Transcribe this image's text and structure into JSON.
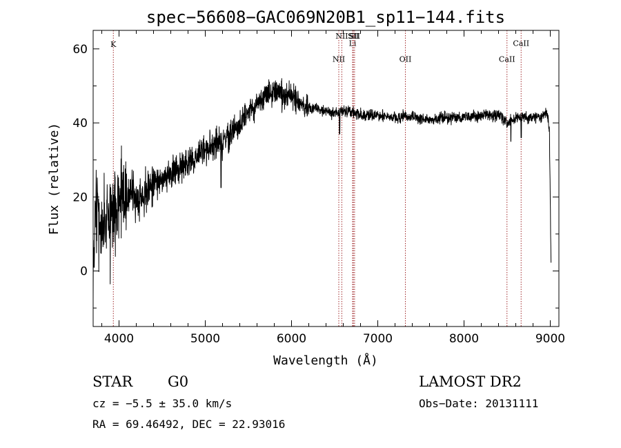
{
  "chart_data": {
    "type": "line",
    "title": "spec−56608−GAC069N20B1_sp11−144.fits",
    "xlabel": "Wavelength (Å)",
    "ylabel": "Flux (relative)",
    "xlim": [
      3700,
      9100
    ],
    "ylim": [
      -15,
      65
    ],
    "xticks": [
      {
        "value": 4000,
        "label": "4000"
      },
      {
        "value": 5000,
        "label": "5000"
      },
      {
        "value": 6000,
        "label": "6000"
      },
      {
        "value": 7000,
        "label": "7000"
      },
      {
        "value": 8000,
        "label": "8000"
      },
      {
        "value": 9000,
        "label": "9000"
      }
    ],
    "yticks": [
      {
        "value": 0,
        "label": "0"
      },
      {
        "value": 20,
        "label": "20"
      },
      {
        "value": 40,
        "label": "40"
      },
      {
        "value": 60,
        "label": "60"
      }
    ],
    "spectral_lines": [
      {
        "name": "K",
        "wavelength": 3934,
        "label_y": 60.5
      },
      {
        "name": "NII",
        "wavelength": 6548,
        "label_y": 56.5
      },
      {
        "name": "NII",
        "wavelength": 6583,
        "label_y": 62.8
      },
      {
        "name": "Li",
        "wavelength": 6708,
        "label_y": 60.8
      },
      {
        "name": "SII",
        "wavelength": 6717,
        "label_y": 62.8
      },
      {
        "name": "SII",
        "wavelength": 6731,
        "label_y": 62.8
      },
      {
        "name": "OII",
        "wavelength": 7320,
        "label_y": 56.5
      },
      {
        "name": "CaII",
        "wavelength": 8498,
        "label_y": 56.5
      },
      {
        "name": "CaII",
        "wavelength": 8662,
        "label_y": 60.8
      }
    ],
    "spectrum_trend": [
      [
        3700,
        5
      ],
      [
        3750,
        18
      ],
      [
        3800,
        8
      ],
      [
        3850,
        15
      ],
      [
        3900,
        14
      ],
      [
        3950,
        16
      ],
      [
        4000,
        18
      ],
      [
        4100,
        21
      ],
      [
        4200,
        20
      ],
      [
        4300,
        21
      ],
      [
        4400,
        24
      ],
      [
        4500,
        25
      ],
      [
        4600,
        26
      ],
      [
        4700,
        28
      ],
      [
        4800,
        29
      ],
      [
        4900,
        31
      ],
      [
        5000,
        33
      ],
      [
        5100,
        34
      ],
      [
        5200,
        35
      ],
      [
        5300,
        37
      ],
      [
        5400,
        40
      ],
      [
        5500,
        43
      ],
      [
        5600,
        45
      ],
      [
        5700,
        47
      ],
      [
        5800,
        48
      ],
      [
        5900,
        48
      ],
      [
        6000,
        47
      ],
      [
        6100,
        45
      ],
      [
        6200,
        44
      ],
      [
        6300,
        44
      ],
      [
        6400,
        43
      ],
      [
        6500,
        43
      ],
      [
        6600,
        43
      ],
      [
        6700,
        43
      ],
      [
        6800,
        42
      ],
      [
        6900,
        42
      ],
      [
        7000,
        42
      ],
      [
        7200,
        41.5
      ],
      [
        7400,
        41.5
      ],
      [
        7600,
        41
      ],
      [
        7800,
        41.5
      ],
      [
        8000,
        41.5
      ],
      [
        8200,
        42
      ],
      [
        8400,
        42
      ],
      [
        8500,
        40
      ],
      [
        8600,
        41
      ],
      [
        8700,
        41.5
      ],
      [
        8800,
        41.5
      ],
      [
        8900,
        41.5
      ],
      [
        8960,
        43
      ],
      [
        8990,
        38
      ],
      [
        9000,
        20
      ],
      [
        9010,
        0
      ]
    ],
    "noise_seed": 11
  },
  "info": {
    "object_class": "STAR",
    "subclass": "G0",
    "survey": "LAMOST DR2",
    "cz": "cz = −5.5 ± 35.0 km/s",
    "obs_date": "Obs−Date: 20131111",
    "coords": "RA =  69.46492, DEC =  22.93016"
  },
  "colors": {
    "line_marker": "#a0282a",
    "spectrum": "#000000"
  }
}
